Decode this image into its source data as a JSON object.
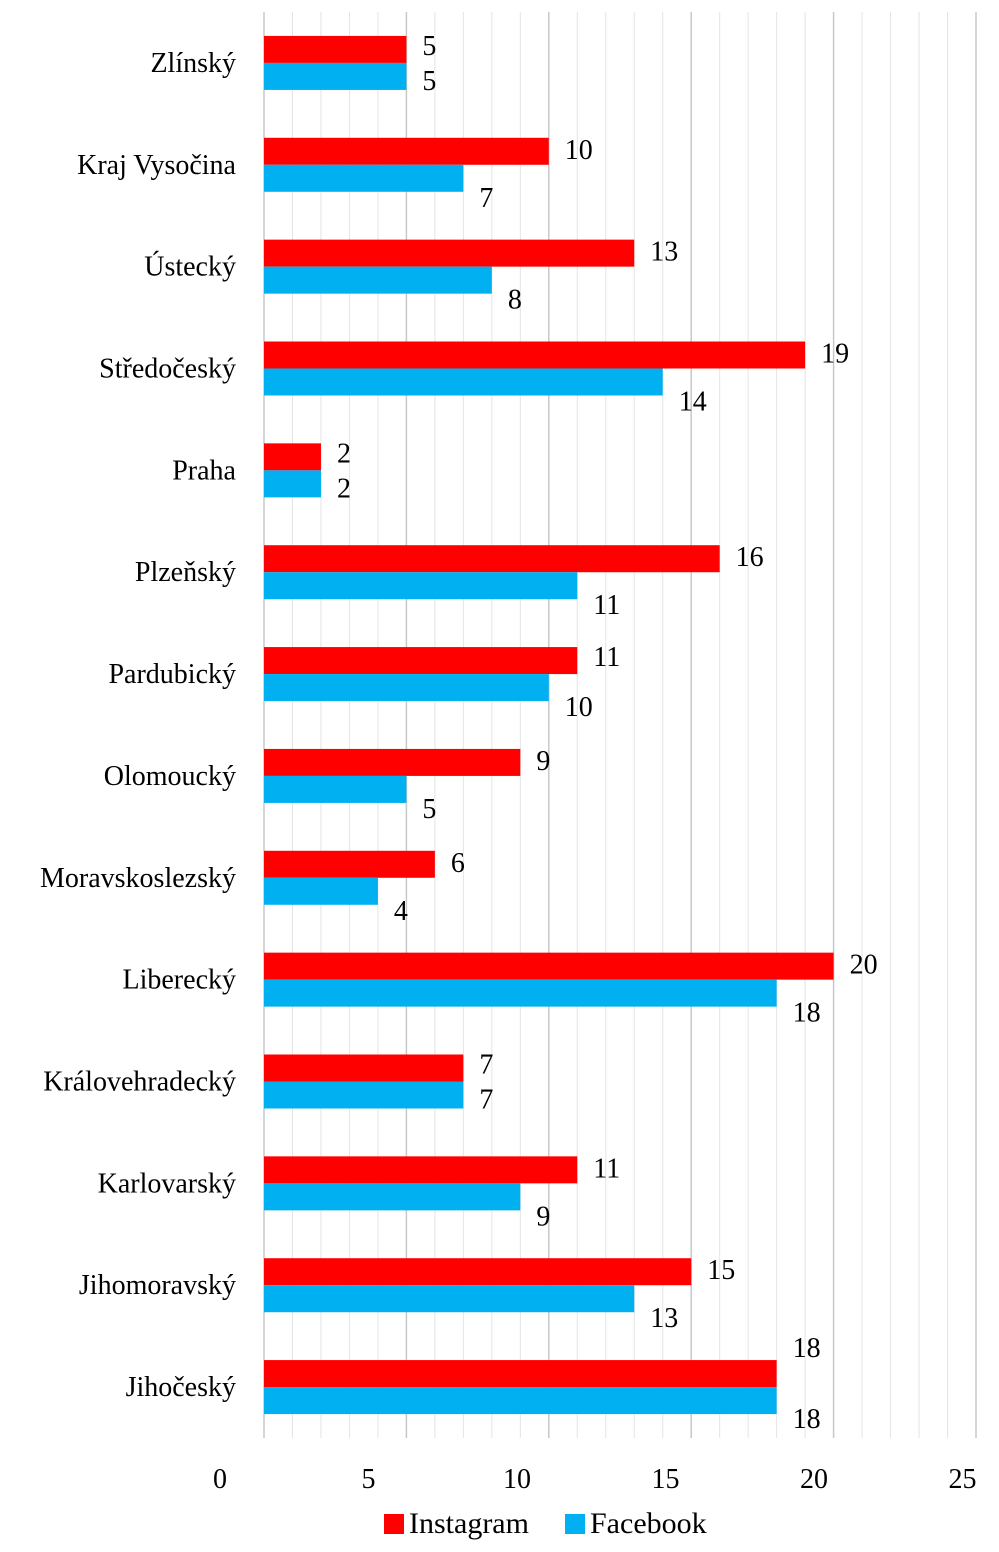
{
  "chart_data": {
    "type": "bar",
    "orientation": "horizontal",
    "categories": [
      "Zlínský",
      "Kraj Vysočina",
      "Ústecký",
      "Středočeský",
      "Praha",
      "Plzeňský",
      "Pardubický",
      "Olomoucký",
      "Moravskoslezský",
      "Liberecký",
      "Královehradecký",
      "Karlovarský",
      "Jihomoravský",
      "Jihočeský"
    ],
    "series": [
      {
        "name": "Instagram",
        "color": "#ff0000",
        "values": [
          5,
          10,
          13,
          19,
          2,
          16,
          11,
          9,
          6,
          20,
          7,
          11,
          15,
          18
        ]
      },
      {
        "name": "Facebook",
        "color": "#00b0f0",
        "values": [
          5,
          7,
          8,
          14,
          2,
          11,
          10,
          5,
          4,
          18,
          7,
          9,
          13,
          18
        ]
      }
    ],
    "xlim": [
      0,
      25
    ],
    "xticks": [
      0,
      5,
      10,
      15,
      20,
      25
    ],
    "title": "",
    "xlabel": "",
    "ylabel": "",
    "grid": "vertical",
    "legend_position": "bottom"
  }
}
